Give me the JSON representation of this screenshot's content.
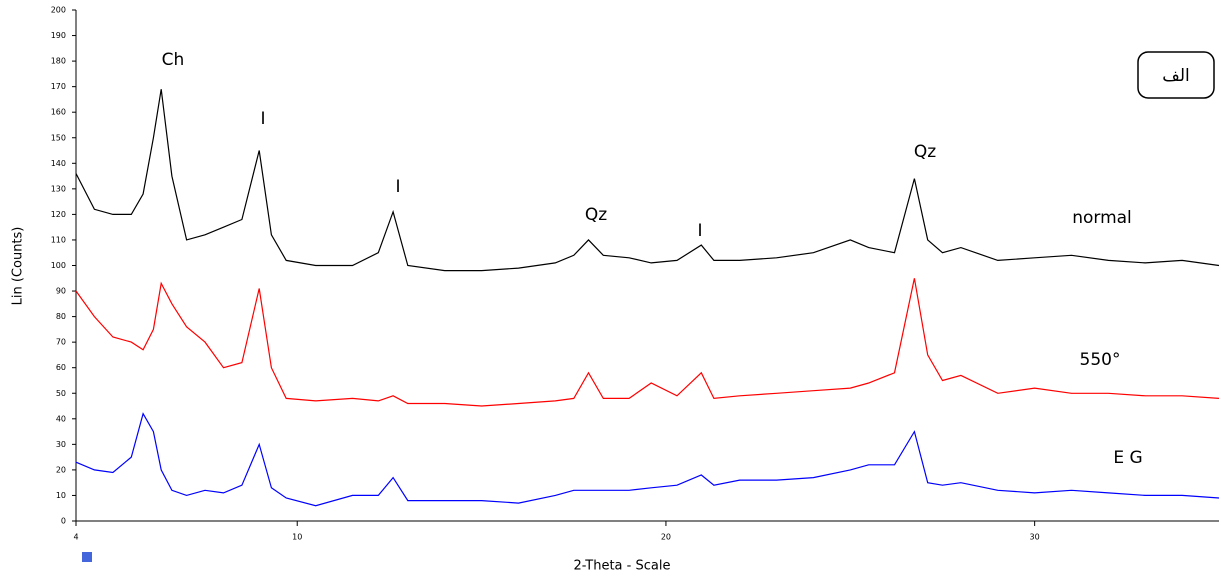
{
  "chart_data": {
    "type": "line",
    "x_label": "2-Theta - Scale",
    "y_label": "Lin (Counts)",
    "panel_label": "الف",
    "annotations": [
      "Ch",
      "I",
      "I",
      "Qz",
      "I",
      "Qz"
    ],
    "x": [
      4,
      4.5,
      5,
      5.5,
      5.82,
      6.1,
      6.31,
      6.6,
      7,
      7.5,
      8,
      8.5,
      8.97,
      9.3,
      9.7,
      10.5,
      11.5,
      12.2,
      12.6,
      13,
      14,
      15,
      16,
      17,
      17.5,
      17.9,
      18.3,
      19,
      19.6,
      20.3,
      20.96,
      21.3,
      22,
      23,
      24,
      25,
      25.5,
      26.2,
      26.74,
      27.1,
      27.5,
      28,
      29,
      30,
      31,
      32,
      33,
      34,
      35
    ],
    "series": [
      {
        "name": "normal",
        "color": "#000000",
        "values": [
          136,
          122,
          120,
          120,
          128,
          150,
          169,
          135,
          110,
          112,
          115,
          118,
          145,
          112,
          102,
          100,
          100,
          105,
          121,
          100,
          98,
          98,
          99,
          101,
          104,
          110,
          104,
          103,
          101,
          102,
          108,
          102,
          102,
          103,
          105,
          110,
          107,
          105,
          134,
          110,
          105,
          107,
          102,
          103,
          104,
          102,
          101,
          102,
          100
        ]
      },
      {
        "name": "550°",
        "color": "#ff0000",
        "values": [
          90,
          80,
          72,
          70,
          67,
          75,
          93,
          85,
          76,
          70,
          60,
          62,
          91,
          60,
          48,
          47,
          48,
          47,
          49,
          46,
          46,
          45,
          46,
          47,
          48,
          58,
          48,
          48,
          54,
          49,
          58,
          48,
          49,
          50,
          51,
          52,
          54,
          58,
          95,
          65,
          55,
          57,
          50,
          52,
          50,
          50,
          49,
          49,
          48
        ]
      },
      {
        "name": "E G",
        "color": "#0000ff",
        "values": [
          23,
          20,
          19,
          25,
          42,
          35,
          20,
          12,
          10,
          12,
          11,
          14,
          30,
          13,
          9,
          6,
          10,
          10,
          17,
          8,
          8,
          8,
          7,
          10,
          12,
          12,
          12,
          12,
          13,
          14,
          18,
          14,
          16,
          16,
          17,
          20,
          22,
          22,
          35,
          15,
          14,
          15,
          12,
          11,
          12,
          11,
          10,
          10,
          9
        ]
      }
    ],
    "xlim": [
      4,
      35
    ],
    "ylim": [
      0,
      200
    ],
    "xticks": [
      4,
      10,
      20,
      30
    ],
    "yticks": [
      0,
      10,
      20,
      30,
      40,
      50,
      60,
      70,
      80,
      90,
      100,
      110,
      120,
      130,
      140,
      150,
      160,
      170,
      180,
      190,
      200
    ]
  }
}
